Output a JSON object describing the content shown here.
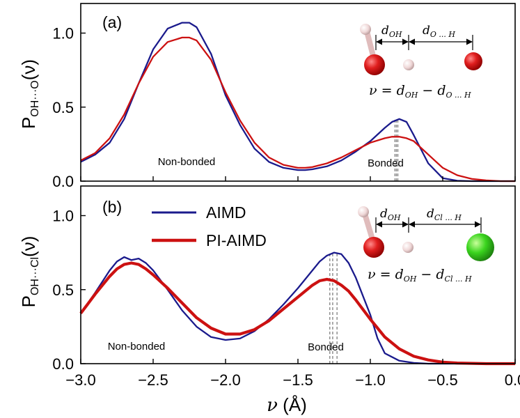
{
  "figure": {
    "xlabel_symbol": "ν",
    "xlabel_unit": " (Å)",
    "legend": [
      {
        "label": "AIMD",
        "color": "#1a1a8c"
      },
      {
        "label": "PI-AIMD",
        "color": "#cc1111"
      }
    ]
  },
  "chart_data": [
    {
      "type": "line",
      "panel_label": "(a)",
      "ylabel_main": "P",
      "ylabel_sub": "OH···O",
      "ylabel_arg": "(ν)",
      "xlim": [
        -3.0,
        0.0
      ],
      "ylim": [
        0.0,
        1.2
      ],
      "xticks": [
        -3.0,
        -2.5,
        -2.0,
        -1.5,
        -1.0,
        -0.5,
        0.0
      ],
      "xtick_labels": [
        "−3.0",
        "−2.5",
        "−2.0",
        "−1.5",
        "−1.0",
        "−0.5",
        "0.0"
      ],
      "yticks": [
        0.0,
        0.5,
        1.0
      ],
      "ytick_labels": [
        "0.0",
        "0.5",
        "1.0"
      ],
      "annotations": {
        "non_bonded": "Non-bonded",
        "bonded": "Bonded"
      },
      "equation": {
        "lhs": "ν = ",
        "d1": "d",
        "d1_sub": "OH",
        "minus": " − ",
        "d2": "d",
        "d2_sub": "O ... H"
      },
      "inset_labels": {
        "d1": "d",
        "d1_sub": "OH",
        "d2": "d",
        "d2_sub": "O ... H"
      },
      "vlines": [
        -0.83,
        -0.82,
        -0.81
      ],
      "series": [
        {
          "name": "AIMD",
          "color": "#1a1a8c",
          "x": [
            -3.0,
            -2.9,
            -2.8,
            -2.7,
            -2.6,
            -2.5,
            -2.4,
            -2.3,
            -2.25,
            -2.2,
            -2.1,
            -2.0,
            -1.9,
            -1.8,
            -1.7,
            -1.6,
            -1.5,
            -1.45,
            -1.4,
            -1.3,
            -1.2,
            -1.1,
            -1.0,
            -0.9,
            -0.85,
            -0.8,
            -0.75,
            -0.7,
            -0.6,
            -0.5,
            -0.4,
            -0.3,
            -0.2,
            -0.1,
            0.0
          ],
          "y": [
            0.13,
            0.18,
            0.26,
            0.42,
            0.66,
            0.89,
            1.03,
            1.07,
            1.07,
            1.04,
            0.86,
            0.58,
            0.38,
            0.22,
            0.13,
            0.09,
            0.075,
            0.075,
            0.08,
            0.1,
            0.14,
            0.2,
            0.27,
            0.36,
            0.4,
            0.42,
            0.4,
            0.31,
            0.12,
            0.02,
            0.003,
            0.0,
            0.0,
            0.0,
            0.0
          ]
        },
        {
          "name": "PI-AIMD",
          "color": "#cc1111",
          "x": [
            -3.0,
            -2.9,
            -2.8,
            -2.7,
            -2.6,
            -2.5,
            -2.4,
            -2.3,
            -2.25,
            -2.2,
            -2.1,
            -2.0,
            -1.9,
            -1.8,
            -1.7,
            -1.6,
            -1.5,
            -1.45,
            -1.4,
            -1.3,
            -1.2,
            -1.1,
            -1.0,
            -0.9,
            -0.85,
            -0.8,
            -0.75,
            -0.7,
            -0.6,
            -0.5,
            -0.4,
            -0.3,
            -0.2,
            -0.1,
            0.0
          ],
          "y": [
            0.14,
            0.19,
            0.29,
            0.45,
            0.66,
            0.84,
            0.94,
            0.97,
            0.97,
            0.95,
            0.82,
            0.6,
            0.41,
            0.26,
            0.16,
            0.11,
            0.09,
            0.09,
            0.095,
            0.12,
            0.16,
            0.21,
            0.26,
            0.29,
            0.3,
            0.3,
            0.29,
            0.27,
            0.18,
            0.09,
            0.04,
            0.015,
            0.005,
            0.0,
            0.0
          ]
        }
      ]
    },
    {
      "type": "line",
      "panel_label": "(b)",
      "ylabel_main": "P",
      "ylabel_sub": "OH···Cl",
      "ylabel_arg": "(ν)",
      "xlim": [
        -3.0,
        0.0
      ],
      "ylim": [
        0.0,
        1.2
      ],
      "xticks": [
        -3.0,
        -2.5,
        -2.0,
        -1.5,
        -1.0,
        -0.5,
        0.0
      ],
      "xtick_labels": [
        "−3.0",
        "−2.5",
        "−2.0",
        "−1.5",
        "−1.0",
        "−0.5",
        "0.0"
      ],
      "yticks": [
        0.0,
        0.5,
        1.0
      ],
      "ytick_labels": [
        "0.0",
        "0.5",
        "1.0"
      ],
      "annotations": {
        "non_bonded": "Non-bonded",
        "bonded": "Bonded"
      },
      "equation": {
        "lhs": "ν = ",
        "d1": "d",
        "d1_sub": "OH",
        "minus": " − ",
        "d2": "d",
        "d2_sub": "Cl ... H"
      },
      "inset_labels": {
        "d1": "d",
        "d1_sub": "OH",
        "d2": "d",
        "d2_sub": "Cl ... H"
      },
      "vlines": [
        -1.28,
        -1.26,
        -1.23
      ],
      "series": [
        {
          "name": "AIMD",
          "color": "#1a1a8c",
          "x": [
            -3.0,
            -2.9,
            -2.8,
            -2.75,
            -2.7,
            -2.65,
            -2.6,
            -2.55,
            -2.5,
            -2.4,
            -2.3,
            -2.2,
            -2.1,
            -2.0,
            -1.9,
            -1.8,
            -1.7,
            -1.6,
            -1.5,
            -1.4,
            -1.35,
            -1.3,
            -1.25,
            -1.2,
            -1.15,
            -1.1,
            -1.0,
            -0.95,
            -0.9,
            -0.8,
            -0.7,
            -0.6,
            -0.5,
            -0.4,
            -0.2,
            0.0
          ],
          "y": [
            0.34,
            0.48,
            0.63,
            0.69,
            0.72,
            0.7,
            0.71,
            0.68,
            0.63,
            0.5,
            0.36,
            0.25,
            0.18,
            0.16,
            0.17,
            0.22,
            0.3,
            0.4,
            0.51,
            0.63,
            0.69,
            0.73,
            0.75,
            0.74,
            0.68,
            0.58,
            0.33,
            0.17,
            0.07,
            0.02,
            0.005,
            0.0,
            0.0,
            0.0,
            0.0,
            0.0
          ]
        },
        {
          "name": "PI-AIMD",
          "color": "#cc1111",
          "x": [
            -3.0,
            -2.9,
            -2.8,
            -2.75,
            -2.7,
            -2.65,
            -2.6,
            -2.55,
            -2.5,
            -2.4,
            -2.3,
            -2.2,
            -2.1,
            -2.0,
            -1.9,
            -1.8,
            -1.7,
            -1.6,
            -1.5,
            -1.4,
            -1.35,
            -1.3,
            -1.25,
            -1.2,
            -1.15,
            -1.1,
            -1.0,
            -0.95,
            -0.9,
            -0.8,
            -0.7,
            -0.6,
            -0.5,
            -0.4,
            -0.2,
            0.0
          ],
          "y": [
            0.34,
            0.47,
            0.59,
            0.64,
            0.67,
            0.68,
            0.67,
            0.64,
            0.6,
            0.51,
            0.41,
            0.31,
            0.24,
            0.2,
            0.2,
            0.23,
            0.29,
            0.37,
            0.45,
            0.53,
            0.56,
            0.57,
            0.56,
            0.53,
            0.49,
            0.43,
            0.3,
            0.24,
            0.18,
            0.1,
            0.05,
            0.025,
            0.01,
            0.004,
            0.0,
            0.0
          ]
        }
      ]
    }
  ]
}
